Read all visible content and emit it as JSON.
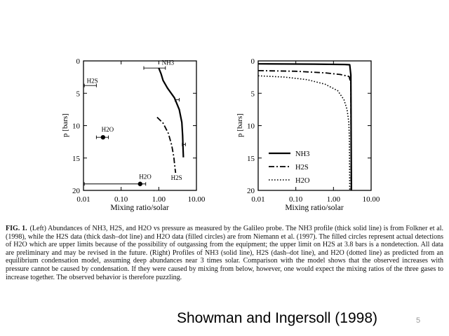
{
  "figure": {
    "caption_label": "FIG. 1.",
    "caption_text": "(Left) Abundances of NH3, H2S, and H2O vs pressure as measured by the Galileo probe. The NH3 profile (thick solid line) is from Folkner et al. (1998), while the H2S data (thick dash–dot line) and H2O data (filled circles) are from Niemann et al. (1997). The filled circles represent actual detections of H2O which are upper limits because of the possibility of outgassing from the equipment; the upper limit on H2S at 3.8 bars is a nondetection. All data are preliminary and may be revised in the future. (Right) Profiles of NH3 (solid line), H2S (dash–dot line), and H2O (dotted line) as predicted from an equilibrium condensation model, assuming deep abundances near 3 times solar. Comparison with the model shows that the observed increases with pressure cannot be caused by condensation. If they were caused by mixing from below, however, one would expect the mixing ratios of the three gases to increase together. The observed behavior is therefore puzzling."
  },
  "citation": "Showman and Ingersoll (1998)",
  "page_number": "5",
  "chart_data": [
    {
      "type": "line",
      "panel": "left",
      "title": "",
      "xlabel": "Mixing ratio/solar",
      "ylabel": "p [bars]",
      "xscale": "log",
      "xlim": [
        0.01,
        10
      ],
      "ylim": [
        20,
        0
      ],
      "xticks": [
        "0.01",
        "0.10",
        "1.00",
        "10.00"
      ],
      "xtick_values": [
        0.01,
        0.1,
        1,
        10
      ],
      "yticks": [
        "0",
        "5",
        "10",
        "15",
        "20"
      ],
      "ytick_values": [
        0,
        5,
        10,
        15,
        20
      ],
      "series": [
        {
          "name": "NH3",
          "style": "solid",
          "points": [
            [
              1.0,
              1.1
            ],
            [
              1.15,
              2.0
            ],
            [
              1.3,
              3.0
            ],
            [
              1.7,
              4.2
            ],
            [
              2.6,
              5.7
            ],
            [
              3.5,
              7.5
            ],
            [
              4.1,
              9.5
            ],
            [
              4.3,
              11.5
            ],
            [
              4.4,
              13.5
            ],
            [
              4.5,
              14.9
            ]
          ],
          "error_bars": [
            {
              "y": 1.1,
              "xmin": 0.4,
              "xmax": 1.5
            },
            {
              "y": 6.0,
              "xmin": 2.7,
              "xmax": 3.5
            },
            {
              "y": 12.9,
              "xmin": 4.2,
              "xmax": 5.1
            }
          ]
        },
        {
          "name": "H2S",
          "style": "dashdot",
          "points": [
            [
              0.9,
              8.7
            ],
            [
              1.3,
              9.6
            ],
            [
              1.8,
              11.2
            ],
            [
              2.2,
              13.0
            ],
            [
              2.5,
              14.8
            ],
            [
              2.7,
              16.6
            ],
            [
              2.8,
              17.3
            ]
          ],
          "error_bars": [
            {
              "y": 3.8,
              "xmin": 0.0105,
              "xmax": 0.022
            }
          ]
        },
        {
          "name": "H2O",
          "style": "markers",
          "points": [
            [
              0.033,
              11.8
            ],
            [
              0.32,
              19.0
            ]
          ],
          "error_bars": [
            {
              "y": 11.8,
              "xmin": 0.022,
              "xmax": 0.046
            },
            {
              "y": 19.0,
              "xmin": 0.0105,
              "xmax": 0.45
            }
          ]
        }
      ],
      "annotations": [
        {
          "text": "NH3",
          "x": 1.2,
          "y": 0.6
        },
        {
          "text": "H2S",
          "x": 0.0122,
          "y": 3.4
        },
        {
          "text": "H2O",
          "x": 0.03,
          "y": 10.9
        },
        {
          "text": "H2O",
          "x": 0.3,
          "y": 18.2
        },
        {
          "text": "H2S",
          "x": 2.1,
          "y": 18.4
        }
      ]
    },
    {
      "type": "line",
      "panel": "right",
      "title": "",
      "xlabel": "Mixing ratio/solar",
      "ylabel": "p [bars]",
      "xscale": "log",
      "xlim": [
        0.01,
        10
      ],
      "ylim": [
        20,
        0
      ],
      "xticks": [
        "0.01",
        "0.10",
        "1.00",
        "10.00"
      ],
      "xtick_values": [
        0.01,
        0.1,
        1,
        10
      ],
      "yticks": [
        "0",
        "5",
        "10",
        "15",
        "20"
      ],
      "ytick_values": [
        0,
        5,
        10,
        15,
        20
      ],
      "legend": {
        "position": "lower-left",
        "entries": [
          "NH3",
          "H2S",
          "H2O"
        ]
      },
      "series": [
        {
          "name": "NH3",
          "style": "solid",
          "points": [
            [
              0.01,
              0.45
            ],
            [
              0.3,
              0.5
            ],
            [
              2.0,
              0.55
            ],
            [
              2.7,
              0.6
            ],
            [
              2.9,
              2.2
            ],
            [
              3.0,
              20
            ]
          ]
        },
        {
          "name": "H2S",
          "style": "dashdot",
          "points": [
            [
              0.01,
              1.5
            ],
            [
              0.1,
              1.6
            ],
            [
              0.6,
              1.85
            ],
            [
              1.5,
              2.1
            ],
            [
              2.6,
              2.4
            ],
            [
              2.9,
              3.5
            ],
            [
              2.95,
              20
            ]
          ]
        },
        {
          "name": "H2O",
          "style": "dotted",
          "points": [
            [
              0.01,
              2.3
            ],
            [
              0.05,
              2.5
            ],
            [
              0.2,
              2.9
            ],
            [
              0.6,
              3.6
            ],
            [
              1.3,
              4.6
            ],
            [
              1.9,
              6.0
            ],
            [
              2.3,
              7.5
            ],
            [
              2.55,
              9.5
            ],
            [
              2.65,
              12.0
            ],
            [
              2.7,
              20
            ]
          ]
        }
      ]
    }
  ]
}
